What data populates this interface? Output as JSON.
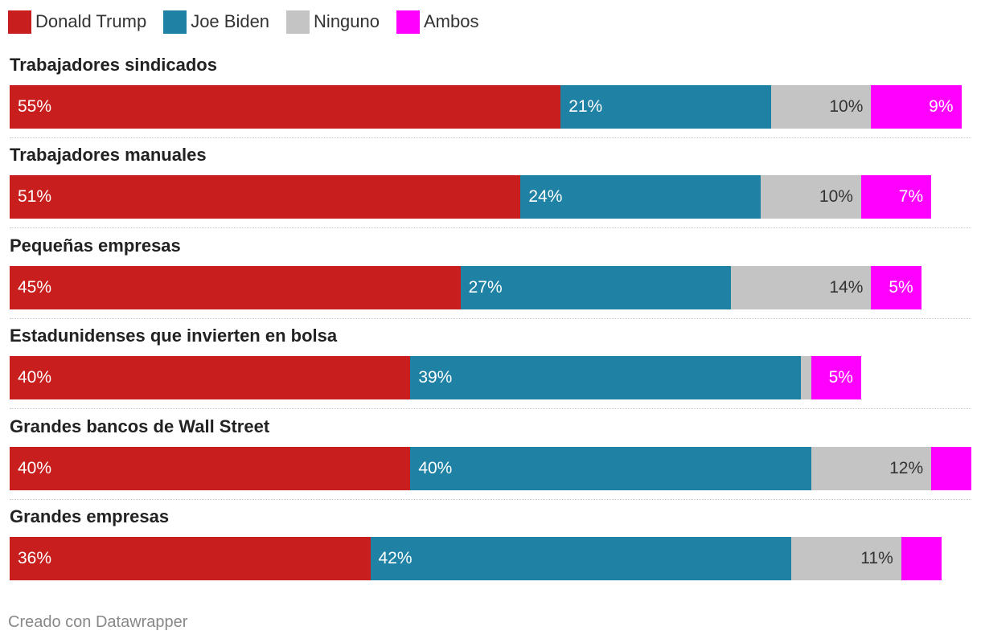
{
  "legend": [
    {
      "name": "Donald Trump",
      "color": "#c81e1e"
    },
    {
      "name": "Joe Biden",
      "color": "#1f82a5"
    },
    {
      "name": "Ninguno",
      "color": "#c4c4c4"
    },
    {
      "name": "Ambos",
      "color": "#ff00ff"
    }
  ],
  "chart_data": {
    "type": "bar",
    "orientation": "horizontal",
    "stacked": true,
    "categories": [
      "Trabajadores sindicados",
      "Trabajadores manuales",
      "Pequeñas empresas",
      "Estadunidenses que invierten en bolsa",
      "Grandes bancos de Wall Street",
      "Grandes empresas"
    ],
    "series": [
      {
        "name": "Donald Trump",
        "color": "#c81e1e",
        "values": [
          55,
          51,
          45,
          40,
          40,
          36
        ],
        "labels": [
          "55%",
          "51%",
          "45%",
          "40%",
          "40%",
          "36%"
        ]
      },
      {
        "name": "Joe Biden",
        "color": "#1f82a5",
        "values": [
          21,
          24,
          27,
          39,
          40,
          42
        ],
        "labels": [
          "21%",
          "24%",
          "27%",
          "39%",
          "40%",
          "42%"
        ]
      },
      {
        "name": "Ninguno",
        "color": "#c4c4c4",
        "values": [
          10,
          10,
          14,
          1,
          12,
          11
        ],
        "labels": [
          "10%",
          "10%",
          "14%",
          "",
          "12%",
          "11%"
        ]
      },
      {
        "name": "Ambos",
        "color": "#ff00ff",
        "values": [
          9,
          7,
          5,
          5,
          4,
          4
        ],
        "labels": [
          "9%",
          "7%",
          "5%",
          "5%",
          "",
          ""
        ]
      }
    ],
    "xlim": [
      0,
      96
    ],
    "title": "",
    "xlabel": "",
    "ylabel": ""
  },
  "footer": "Creado con Datawrapper"
}
